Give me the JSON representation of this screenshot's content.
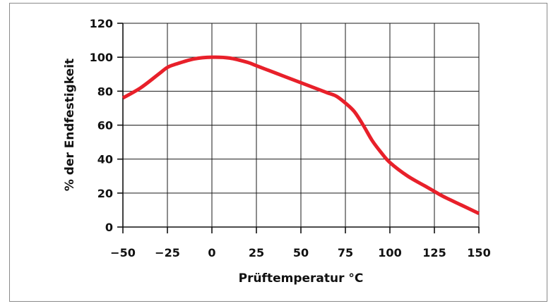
{
  "chart_data": {
    "type": "line",
    "title": "",
    "xlabel": "Prüftemperatur °C",
    "ylabel": "% der Endfestigkeit",
    "xlim": [
      -50,
      150
    ],
    "ylim": [
      0,
      120
    ],
    "x_ticks": [
      -50,
      -25,
      0,
      25,
      50,
      75,
      100,
      125,
      150
    ],
    "x_tick_labels": [
      "−50",
      "−25",
      "0",
      "25",
      "50",
      "75",
      "100",
      "125",
      "150"
    ],
    "y_ticks": [
      0,
      20,
      40,
      60,
      80,
      100,
      120
    ],
    "y_tick_labels": [
      "0",
      "20",
      "40",
      "60",
      "80",
      "100",
      "120"
    ],
    "grid": true,
    "series": [
      {
        "color": "#e8202a",
        "x": [
          -50,
          -40,
          -30,
          -25,
          -20,
          -10,
          0,
          10,
          20,
          25,
          30,
          40,
          50,
          60,
          65,
          70,
          75,
          80,
          85,
          90,
          95,
          100,
          110,
          120,
          125,
          130,
          140,
          150
        ],
        "y": [
          76,
          82,
          90,
          94,
          96,
          99,
          100,
          99.5,
          97,
          95,
          93,
          89,
          85,
          81,
          79,
          77,
          73,
          68,
          60,
          51,
          44,
          38,
          30,
          24,
          21,
          18,
          13,
          8
        ]
      }
    ]
  }
}
